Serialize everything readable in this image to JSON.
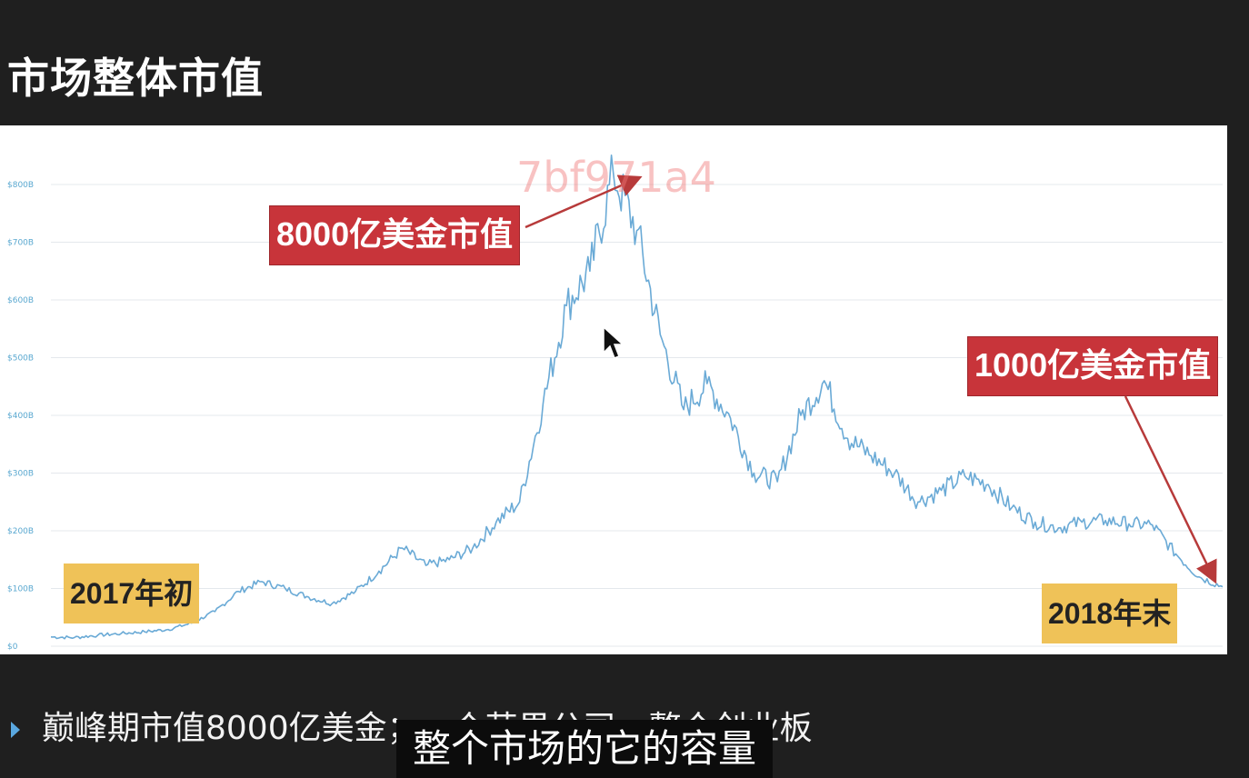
{
  "slide": {
    "title": "市场整体市值"
  },
  "watermark": "7bf971a4",
  "chart_data": {
    "type": "line",
    "ylim": [
      0,
      800
    ],
    "y_tick_labels": [
      "$0",
      "$100B",
      "$200B",
      "$300B",
      "$400B",
      "$500B",
      "$600B",
      "$700B",
      "$800B"
    ],
    "grid": true,
    "series": [
      {
        "color": "#6aaad6",
        "x": [
          0,
          2,
          4,
          6,
          8,
          10,
          12,
          14,
          16,
          18,
          20,
          22,
          24,
          26,
          28,
          30,
          32,
          34,
          36,
          38,
          40,
          42,
          44,
          46,
          48,
          50,
          52,
          54,
          56,
          58,
          60,
          62,
          64,
          66,
          68,
          70,
          72,
          74,
          76,
          78,
          80,
          82,
          84,
          86,
          88,
          90,
          92,
          94,
          96,
          98,
          100
        ],
        "values": [
          16,
          15,
          19,
          22,
          25,
          29,
          40,
          60,
          95,
          112,
          100,
          85,
          74,
          95,
          130,
          170,
          140,
          150,
          170,
          215,
          250,
          420,
          590,
          650,
          820,
          720,
          540,
          410,
          455,
          395,
          300,
          285,
          400,
          460,
          360,
          330,
          300,
          250,
          270,
          295,
          280,
          240,
          215,
          205,
          215,
          218,
          212,
          210,
          160,
          120,
          103
        ]
      }
    ],
    "annotations": [
      {
        "text": "8000亿美金市值",
        "style": "red-box"
      },
      {
        "text": "1000亿美金市值",
        "style": "red-box"
      },
      {
        "text": "2017年初",
        "style": "yellow-box"
      },
      {
        "text": "2018年末",
        "style": "yellow-box"
      }
    ]
  },
  "bullets": [
    {
      "text": "巅峰期市值8000亿美金；一个苹果公司，整个创业板"
    }
  ],
  "subtitle": "整个市场的它的容量"
}
